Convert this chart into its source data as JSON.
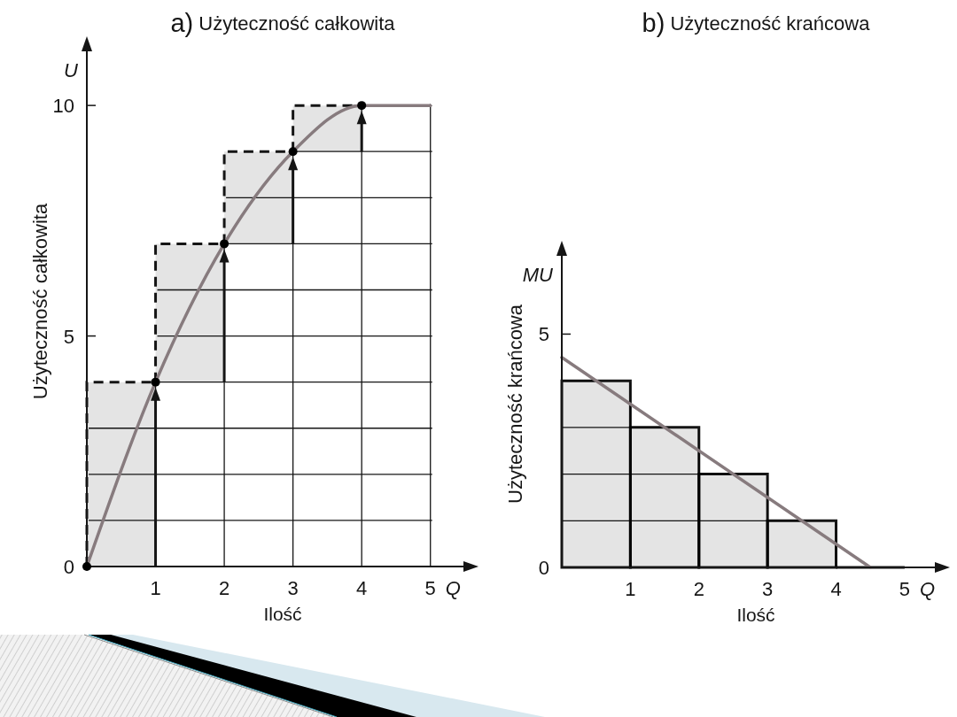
{
  "chart_data": [
    {
      "type": "bar",
      "title": "a) Użyteczność całkowita",
      "xlabel": "Ilość",
      "ylabel": "Użyteczność całkowita",
      "annotations": [
        "Q",
        "U"
      ],
      "xlim": [
        0,
        5.7
      ],
      "ylim": [
        0,
        11.5
      ],
      "xticks": [
        {
          "value": 0,
          "label": null
        },
        1,
        2,
        3,
        4,
        5
      ],
      "yticks": [
        0,
        {
          "value": 1,
          "label": null
        },
        {
          "value": 2,
          "label": null
        },
        {
          "value": 3,
          "label": null
        },
        {
          "value": 4,
          "label": null
        },
        5,
        {
          "value": 6,
          "label": null
        },
        {
          "value": 7,
          "label": null
        },
        {
          "value": 8,
          "label": null
        },
        {
          "value": 9,
          "label": null
        },
        10
      ],
      "grid": true,
      "series": [
        {
          "x": [
            0.5,
            1.5,
            2.5,
            3.5
          ],
          "base": [
            0,
            4,
            7,
            9
          ],
          "values": [
            4,
            3,
            2,
            1
          ],
          "color": "#e4e4e4",
          "line_style": "dashed"
        },
        {
          "type": "line",
          "x": [
            0,
            1,
            2,
            3,
            4,
            5
          ],
          "values": [
            0,
            4,
            7,
            9,
            10,
            10
          ],
          "color": "#877b7e"
        },
        {
          "type": "scatter",
          "x": [
            0,
            1,
            2,
            3,
            4
          ],
          "values": [
            0,
            4,
            7,
            9,
            10
          ],
          "color": "#000000",
          "marker": "circle"
        }
      ]
    },
    {
      "type": "bar",
      "title": "b) Użyteczność krańcowa",
      "xlabel": "Ilość",
      "ylabel": "Użyteczność krańcowa",
      "annotations": [
        "Q",
        "MU"
      ],
      "xlim": [
        0,
        5.66
      ],
      "ylim": [
        0,
        7
      ],
      "xticks": [
        {
          "value": 0,
          "label": null
        },
        1,
        2,
        3,
        4,
        5
      ],
      "yticks": [
        0,
        {
          "value": 1,
          "label": null
        },
        {
          "value": 2,
          "label": null
        },
        {
          "value": 3,
          "label": null
        },
        {
          "value": 4,
          "label": null
        },
        5
      ],
      "grid": true,
      "series": [
        {
          "x": [
            0.5,
            1.5,
            2.5,
            3.5,
            4.5
          ],
          "values": [
            4,
            3,
            2,
            1,
            0
          ],
          "colors": [
            "#e4e4e4",
            "#e4e4e4",
            "#e4e4e4",
            "#e4e4e4",
            "#151515"
          ]
        },
        {
          "type": "line",
          "x": [
            0,
            4.5
          ],
          "values": [
            4.5,
            0
          ],
          "color": "#877b7e"
        }
      ]
    }
  ]
}
